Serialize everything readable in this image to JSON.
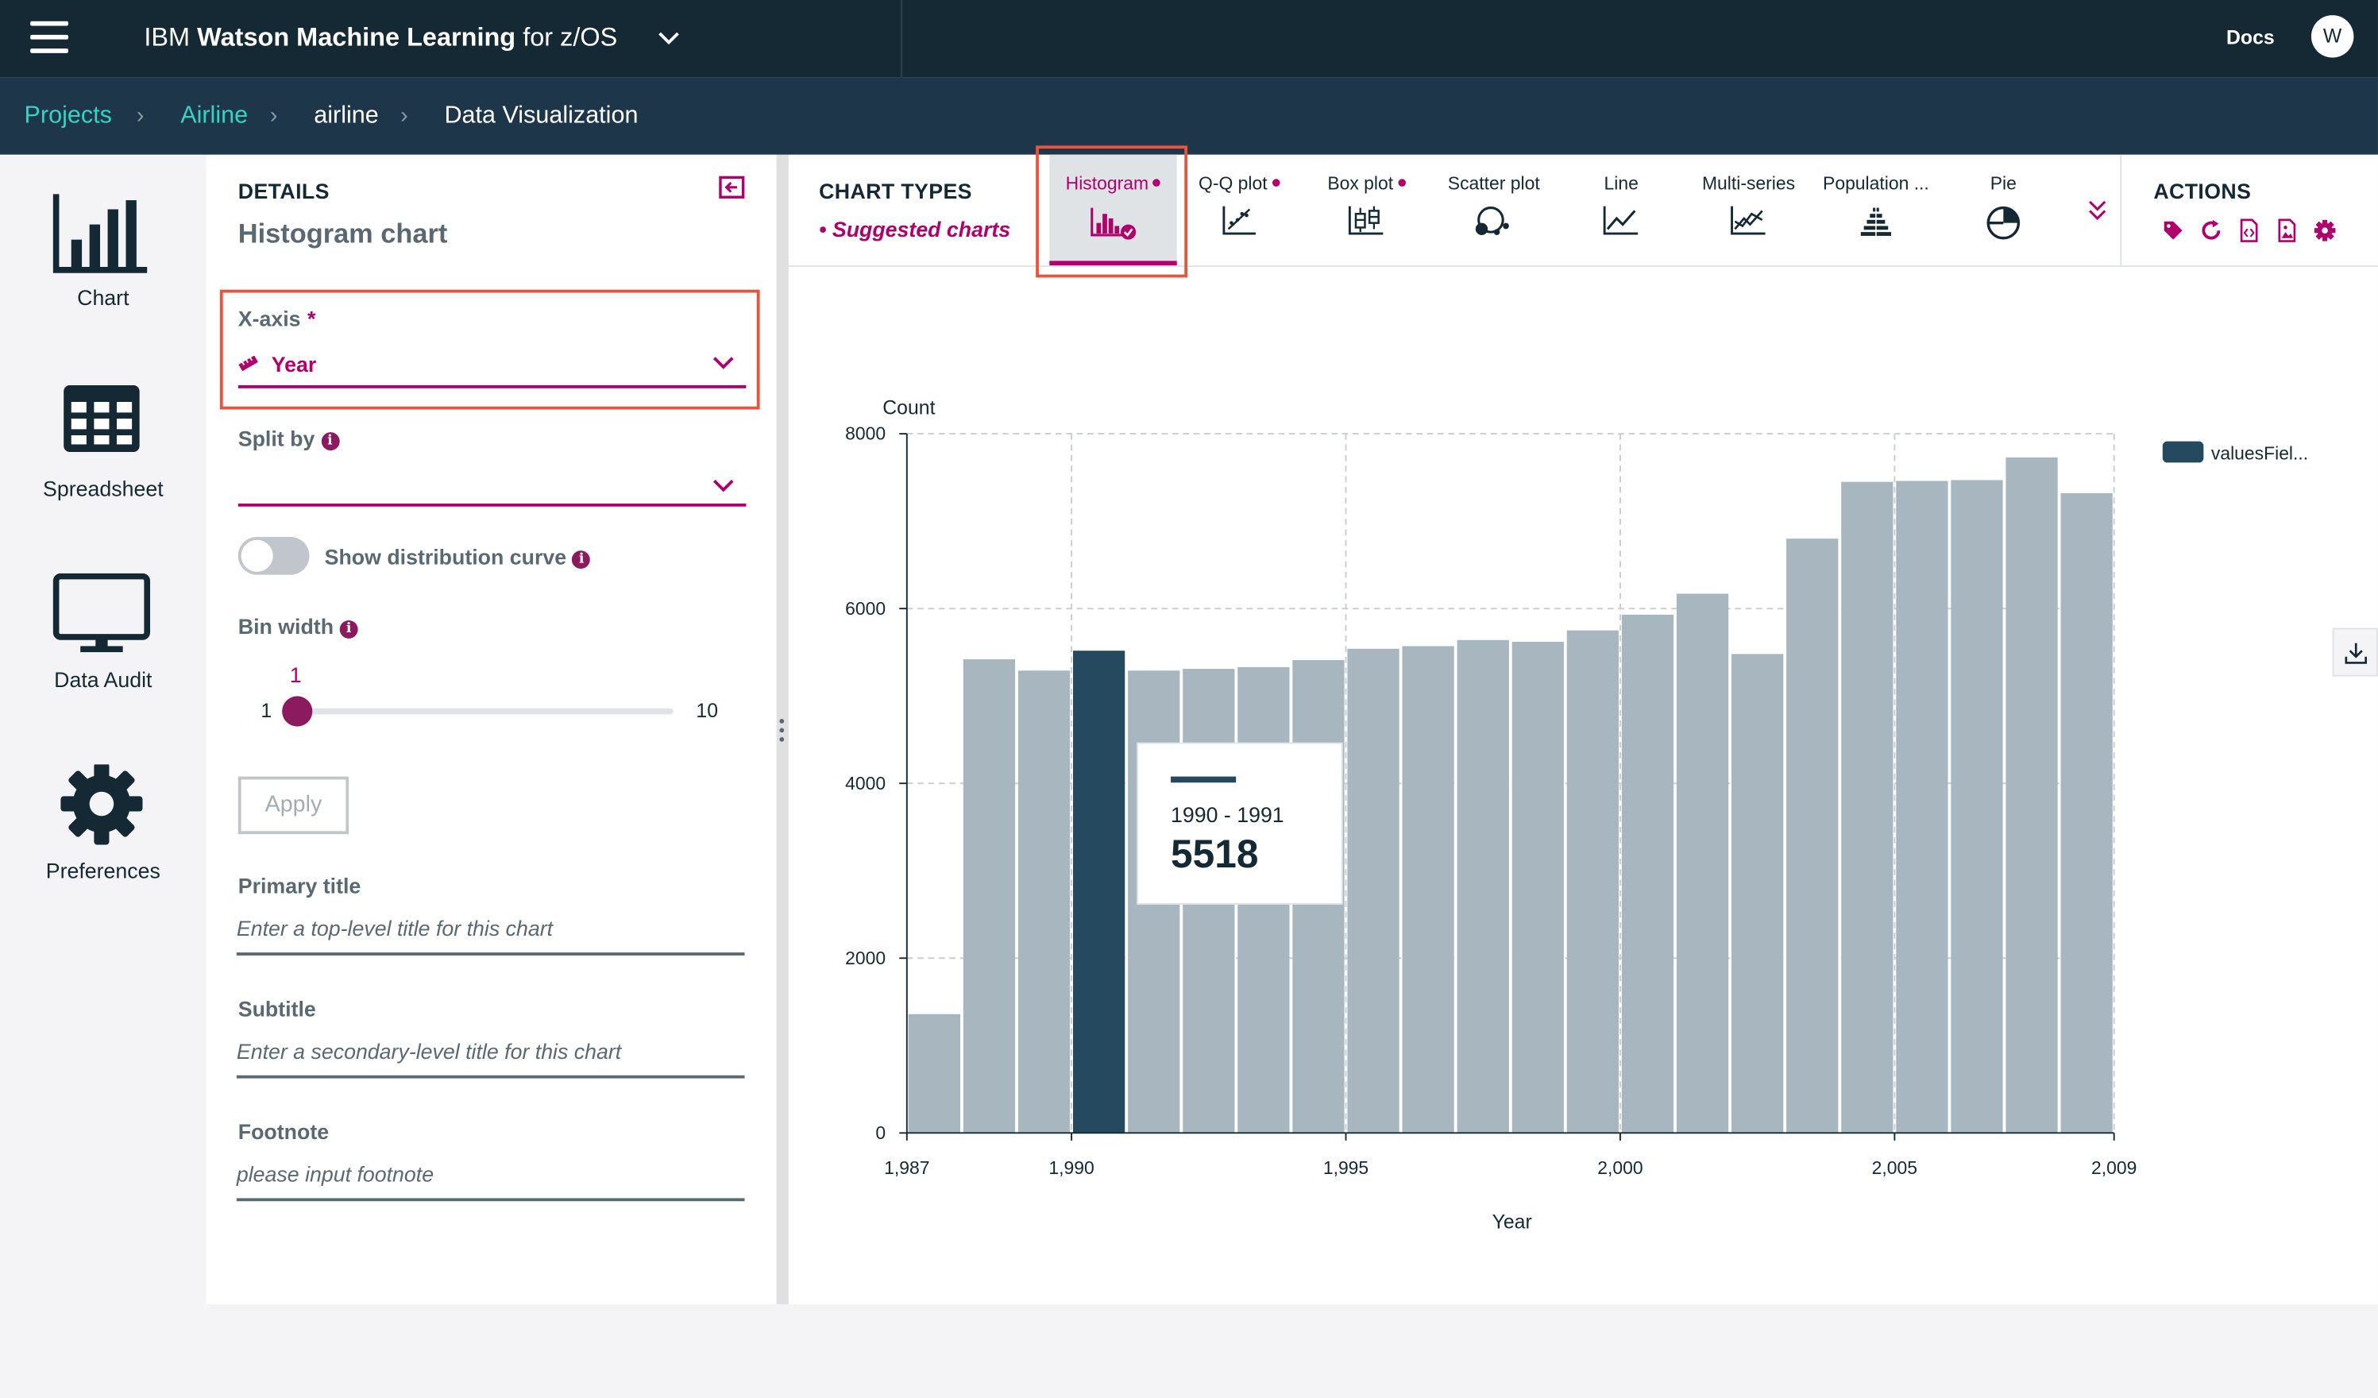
{
  "topbar": {
    "brand_prefix": "IBM",
    "brand_name": "Watson Machine Learning",
    "brand_suffix": "for z/OS",
    "docs_label": "Docs",
    "avatar_initial": "W"
  },
  "breadcrumb": [
    "Projects",
    "Airline",
    "airline",
    "Data Visualization"
  ],
  "nav": [
    {
      "label": "Chart",
      "icon": "bar-chart-icon"
    },
    {
      "label": "Spreadsheet",
      "icon": "table-icon"
    },
    {
      "label": "Data Audit",
      "icon": "monitor-icon"
    },
    {
      "label": "Preferences",
      "icon": "gear-icon"
    }
  ],
  "details": {
    "heading": "DETAILS",
    "chart_name": "Histogram chart",
    "xaxis_label": "X-axis",
    "required_mark": "*",
    "xaxis_value": "Year",
    "splitby_label": "Split by",
    "splitby_value": "",
    "distribution_label": "Show distribution curve",
    "distribution_on": false,
    "binwidth_label": "Bin width",
    "bin_value": "1",
    "bin_min": "1",
    "bin_max": "10",
    "bin_level": 0,
    "apply_label": "Apply",
    "primary_title_label": "Primary title",
    "primary_title_placeholder": "Enter a top-level title for this chart",
    "subtitle_label": "Subtitle",
    "subtitle_placeholder": "Enter a secondary-level title for this chart",
    "footnote_label": "Footnote",
    "footnote_placeholder": "please input footnote"
  },
  "chart_types": {
    "heading": "CHART TYPES",
    "suggested": "• Suggested charts",
    "items": [
      {
        "label": "Histogram",
        "suggested": true,
        "selected": true
      },
      {
        "label": "Q-Q plot",
        "suggested": true
      },
      {
        "label": "Box plot",
        "suggested": true
      },
      {
        "label": "Scatter plot"
      },
      {
        "label": "Line"
      },
      {
        "label": "Multi-series"
      },
      {
        "label": "Population ..."
      },
      {
        "label": "Pie"
      }
    ]
  },
  "actions": {
    "heading": "ACTIONS",
    "icons": [
      "tag-icon",
      "refresh-icon",
      "code-icon",
      "image-icon",
      "settings-icon"
    ]
  },
  "colors": {
    "accent": "#b0006d",
    "bar": "#a8b6bf",
    "bar_highlight": "#254a5f",
    "highlight_box": "#e8553e"
  },
  "chart_data": {
    "type": "bar",
    "xlabel": "Year",
    "ylabel": "Count",
    "ylim": [
      0,
      8000
    ],
    "yticks": [
      "0",
      "2000",
      "4000",
      "6000",
      "8000"
    ],
    "xticks": [
      "1,987",
      "1,990",
      "1,995",
      "2,000",
      "2,005",
      "2,009"
    ],
    "xtick_values": [
      1987,
      1990,
      1995,
      2000,
      2005,
      2009
    ],
    "xlim": [
      1987,
      2009
    ],
    "grid": true,
    "legend": {
      "label": "valuesFiel...",
      "position": "top-right"
    },
    "bins": [
      {
        "start": 1987,
        "value": 1360
      },
      {
        "start": 1988,
        "value": 5420
      },
      {
        "start": 1989,
        "value": 5290
      },
      {
        "start": 1990,
        "value": 5518
      },
      {
        "start": 1991,
        "value": 5290
      },
      {
        "start": 1992,
        "value": 5310
      },
      {
        "start": 1993,
        "value": 5330
      },
      {
        "start": 1994,
        "value": 5410
      },
      {
        "start": 1995,
        "value": 5540
      },
      {
        "start": 1996,
        "value": 5570
      },
      {
        "start": 1997,
        "value": 5640
      },
      {
        "start": 1998,
        "value": 5620
      },
      {
        "start": 1999,
        "value": 5750
      },
      {
        "start": 2000,
        "value": 5930
      },
      {
        "start": 2001,
        "value": 6170
      },
      {
        "start": 2002,
        "value": 5480
      },
      {
        "start": 2003,
        "value": 6800
      },
      {
        "start": 2004,
        "value": 7450
      },
      {
        "start": 2005,
        "value": 7460
      },
      {
        "start": 2006,
        "value": 7470
      },
      {
        "start": 2007,
        "value": 7730
      },
      {
        "start": 2008,
        "value": 7320
      }
    ],
    "highlight_index": 3,
    "tooltip": {
      "range": "1990 - 1991",
      "value": "5518"
    }
  }
}
